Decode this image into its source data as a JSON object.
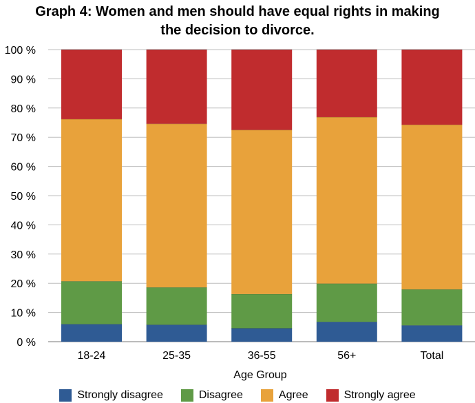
{
  "chart_data": {
    "type": "bar",
    "stacked": true,
    "title": "Graph 4: Women and men should have equal rights in making the decision to divorce.",
    "title_lines": [
      "Graph 4: Women and men should have equal rights in making",
      "the decision to divorce."
    ],
    "xlabel": "Age Group",
    "ylabel": "",
    "ylim": [
      0,
      100
    ],
    "yticks": [
      0,
      10,
      20,
      30,
      40,
      50,
      60,
      70,
      80,
      90,
      100
    ],
    "ytick_labels": [
      "0 %",
      "10 %",
      "20 %",
      "30 %",
      "40 %",
      "50 %",
      "60 %",
      "70 %",
      "80 %",
      "90 %",
      "100 %"
    ],
    "categories": [
      "18-24",
      "25-35",
      "36-55",
      "56+",
      "Total"
    ],
    "series": [
      {
        "name": "Strongly disagree",
        "color": "#2f5b94",
        "values": [
          6.0,
          5.8,
          4.6,
          6.8,
          5.6
        ]
      },
      {
        "name": "Disagree",
        "color": "#5f9a46",
        "values": [
          14.7,
          12.8,
          11.7,
          13.1,
          12.3
        ]
      },
      {
        "name": "Agree",
        "color": "#e8a23b",
        "values": [
          55.5,
          56.0,
          56.2,
          57.0,
          56.4
        ]
      },
      {
        "name": "Strongly agree",
        "color": "#c02c2e",
        "values": [
          23.8,
          25.4,
          27.5,
          23.1,
          25.7
        ]
      }
    ],
    "grid": true,
    "legend_position": "bottom"
  }
}
